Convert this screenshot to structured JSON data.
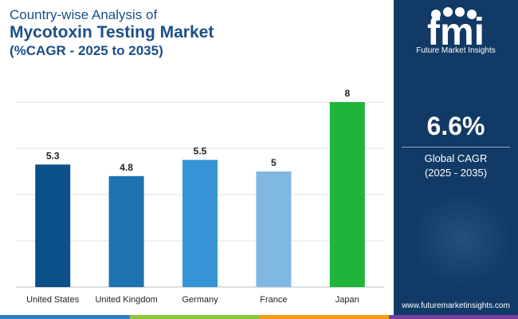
{
  "header": {
    "line1": "Country-wise Analysis of",
    "line2": "Mycotoxin Testing Market",
    "line3": "(%CAGR - 2025 to 2035)"
  },
  "chart_data": {
    "type": "bar",
    "title": "Mycotoxin Testing Market",
    "categories": [
      "United States",
      "United Kingdom",
      "Germany",
      "France",
      "Japan"
    ],
    "values": [
      5.3,
      4.8,
      5.5,
      5,
      8
    ],
    "value_labels": [
      "5.3",
      "4.8",
      "5.5",
      "5",
      "8"
    ],
    "bar_colors": [
      "#0c5089",
      "#1e73b0",
      "#3594d6",
      "#7fb8e3",
      "#1fb53a"
    ],
    "ylim": [
      0,
      8
    ],
    "grid": true,
    "xlabel": "",
    "ylabel": ""
  },
  "side_panel": {
    "brand_letters": "fmi",
    "brand_name": "Future Market Insights",
    "cagr_value": "6.6%",
    "cagr_label_line1": "Global CAGR",
    "cagr_label_line2": "(2025 - 2035)",
    "website": "www.futuremarketinsights.com"
  },
  "colors": {
    "title": "#1a4f8a",
    "panel_background": "#123a66",
    "bottom_strip": [
      "#2b7fc9",
      "#8cc63f",
      "#f39c12",
      "#7b3fa0"
    ]
  }
}
